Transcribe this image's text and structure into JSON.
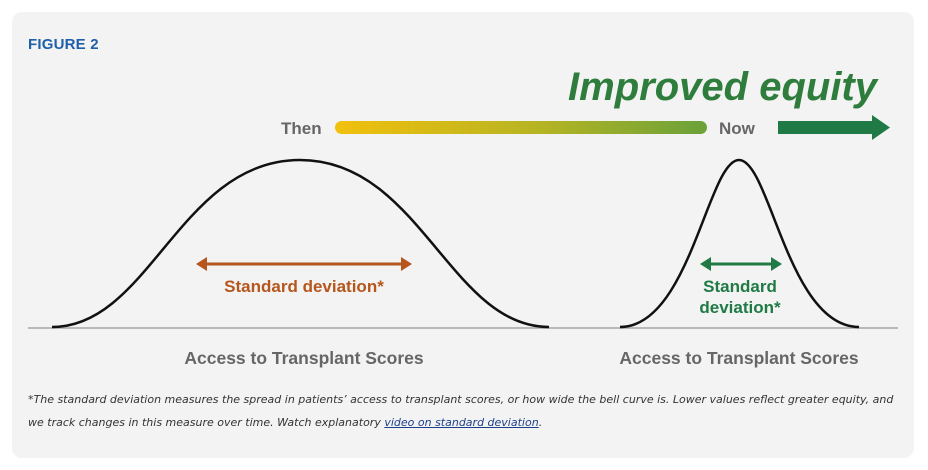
{
  "figure_label": "FIGURE 2",
  "headline": "Improved equity",
  "timeline": {
    "start_label": "Then",
    "end_label": "Now"
  },
  "left_curve": {
    "sd_label": "Standard deviation*",
    "axis_label": "Access to Transplant Scores"
  },
  "right_curve": {
    "sd_label_line1": "Standard",
    "sd_label_line2": "deviation*",
    "axis_label": "Access to Transplant Scores"
  },
  "caption": {
    "text": "*The standard deviation measures the spread in patients’ access to transplant scores, or how wide the bell curve is. Lower values reflect greater equity, and we track changes in this measure over time. Watch explanatory ",
    "link_text": "video on standard deviation",
    "after_link": "."
  },
  "colors": {
    "headline_green": "#2e7d3c",
    "arrow_green": "#1f7a45",
    "gradient_start": "#f2c00c",
    "gradient_end": "#6aa13a",
    "sd_orange": "#b5561c",
    "sd_green": "#1f7a45",
    "label_gray": "#666666",
    "figure_blue": "#1d5fa8"
  }
}
